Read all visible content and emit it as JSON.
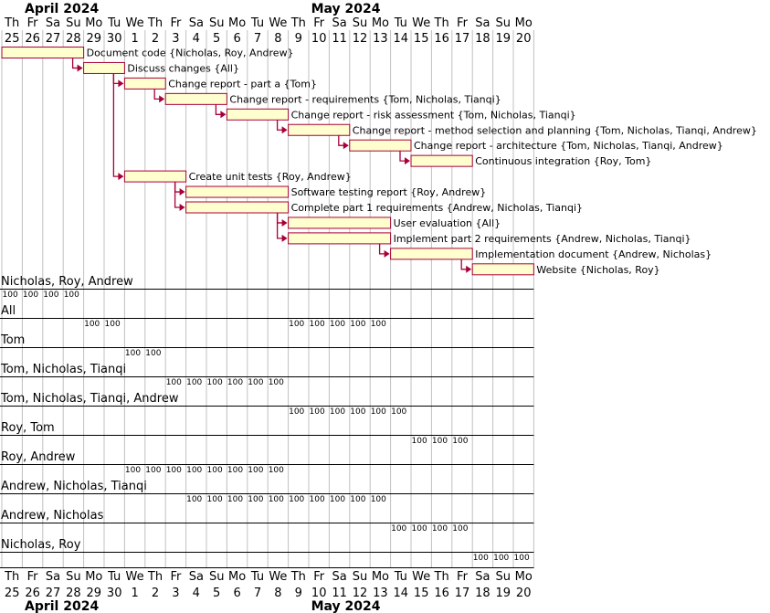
{
  "chart_data": {
    "type": "gantt",
    "months": [
      {
        "name": "April 2024",
        "start_day": 0
      },
      {
        "name": "May 2024",
        "start_day": 14
      }
    ],
    "days": [
      {
        "dow": "Th",
        "num": "25"
      },
      {
        "dow": "Fr",
        "num": "26"
      },
      {
        "dow": "Sa",
        "num": "27"
      },
      {
        "dow": "Su",
        "num": "28"
      },
      {
        "dow": "Mo",
        "num": "29"
      },
      {
        "dow": "Tu",
        "num": "30"
      },
      {
        "dow": "We",
        "num": "1"
      },
      {
        "dow": "Th",
        "num": "2"
      },
      {
        "dow": "Fr",
        "num": "3"
      },
      {
        "dow": "Sa",
        "num": "4"
      },
      {
        "dow": "Su",
        "num": "5"
      },
      {
        "dow": "Mo",
        "num": "6"
      },
      {
        "dow": "Tu",
        "num": "7"
      },
      {
        "dow": "We",
        "num": "8"
      },
      {
        "dow": "Th",
        "num": "9"
      },
      {
        "dow": "Fr",
        "num": "10"
      },
      {
        "dow": "Sa",
        "num": "11"
      },
      {
        "dow": "Su",
        "num": "12"
      },
      {
        "dow": "Mo",
        "num": "13"
      },
      {
        "dow": "Tu",
        "num": "14"
      },
      {
        "dow": "We",
        "num": "15"
      },
      {
        "dow": "Th",
        "num": "16"
      },
      {
        "dow": "Fr",
        "num": "17"
      },
      {
        "dow": "Sa",
        "num": "18"
      },
      {
        "dow": "Su",
        "num": "19"
      },
      {
        "dow": "Mo",
        "num": "20"
      }
    ],
    "tasks": [
      {
        "label": "Document code {Nicholas, Roy, Andrew}",
        "start": 0,
        "end": 4,
        "after": null
      },
      {
        "label": "Discuss changes {All}",
        "start": 4,
        "end": 6,
        "after": 0
      },
      {
        "label": "Change report - part a {Tom}",
        "start": 6,
        "end": 8,
        "after": 1
      },
      {
        "label": "Change report - requirements {Tom, Nicholas, Tianqi}",
        "start": 8,
        "end": 11,
        "after": 2
      },
      {
        "label": "Change report - risk assessment {Tom, Nicholas, Tianqi}",
        "start": 11,
        "end": 14,
        "after": 3
      },
      {
        "label": "Change report - method selection and planning {Tom, Nicholas, Tianqi, Andrew}",
        "start": 14,
        "end": 17,
        "after": 4
      },
      {
        "label": "Change report - architecture {Tom, Nicholas, Tianqi, Andrew}",
        "start": 17,
        "end": 20,
        "after": 5
      },
      {
        "label": "Continuous integration {Roy, Tom}",
        "start": 20,
        "end": 23,
        "after": 6
      },
      {
        "label": "Create unit tests {Roy, Andrew}",
        "start": 6,
        "end": 9,
        "after": 1
      },
      {
        "label": "Software testing report {Roy, Andrew}",
        "start": 9,
        "end": 14,
        "after": 8
      },
      {
        "label": "Complete part 1 requirements {Andrew, Nicholas, Tianqi}",
        "start": 9,
        "end": 14,
        "after": 8
      },
      {
        "label": "User evaluation {All}",
        "start": 14,
        "end": 19,
        "after": 10
      },
      {
        "label": "Implement part 2 requirements {Andrew, Nicholas, Tianqi}",
        "start": 14,
        "end": 19,
        "after": 10
      },
      {
        "label": "Implementation document {Andrew, Nicholas}",
        "start": 19,
        "end": 23,
        "after": 12
      },
      {
        "label": "Website {Nicholas, Roy}",
        "start": 23,
        "end": 26,
        "after": 13
      }
    ],
    "resources": [
      {
        "name": "Nicholas, Roy, Andrew",
        "loads": [
          [
            0,
            100
          ],
          [
            1,
            100
          ],
          [
            2,
            100
          ],
          [
            3,
            100
          ]
        ]
      },
      {
        "name": "All",
        "loads": [
          [
            4,
            100
          ],
          [
            5,
            100
          ],
          [
            14,
            100
          ],
          [
            15,
            100
          ],
          [
            16,
            100
          ],
          [
            17,
            100
          ],
          [
            18,
            100
          ]
        ]
      },
      {
        "name": "Tom",
        "loads": [
          [
            6,
            100
          ],
          [
            7,
            100
          ]
        ]
      },
      {
        "name": "Tom, Nicholas, Tianqi",
        "loads": [
          [
            8,
            100
          ],
          [
            9,
            100
          ],
          [
            10,
            100
          ],
          [
            11,
            100
          ],
          [
            12,
            100
          ],
          [
            13,
            100
          ]
        ]
      },
      {
        "name": "Tom, Nicholas, Tianqi, Andrew",
        "loads": [
          [
            14,
            100
          ],
          [
            15,
            100
          ],
          [
            16,
            100
          ],
          [
            17,
            100
          ],
          [
            18,
            100
          ],
          [
            19,
            100
          ]
        ]
      },
      {
        "name": "Roy, Tom",
        "loads": [
          [
            20,
            100
          ],
          [
            21,
            100
          ],
          [
            22,
            100
          ]
        ]
      },
      {
        "name": "Roy, Andrew",
        "loads": [
          [
            6,
            100
          ],
          [
            7,
            100
          ],
          [
            8,
            100
          ],
          [
            9,
            100
          ],
          [
            10,
            100
          ],
          [
            11,
            100
          ],
          [
            12,
            100
          ],
          [
            13,
            100
          ]
        ]
      },
      {
        "name": "Andrew, Nicholas, Tianqi",
        "loads": [
          [
            9,
            100
          ],
          [
            10,
            100
          ],
          [
            11,
            100
          ],
          [
            12,
            100
          ],
          [
            13,
            100
          ],
          [
            14,
            100
          ],
          [
            15,
            100
          ],
          [
            16,
            100
          ],
          [
            17,
            100
          ],
          [
            18,
            100
          ]
        ]
      },
      {
        "name": "Andrew, Nicholas",
        "loads": [
          [
            19,
            100
          ],
          [
            20,
            100
          ],
          [
            21,
            100
          ],
          [
            22,
            100
          ]
        ]
      },
      {
        "name": "Nicholas, Roy",
        "loads": [
          [
            23,
            100
          ],
          [
            24,
            100
          ],
          [
            25,
            100
          ]
        ]
      }
    ],
    "colors": {
      "bar_fill": "#fefece",
      "bar_stroke": "#a80036",
      "arrow": "#a80036",
      "grid": "#c0c0c0",
      "text": "#000000"
    }
  }
}
